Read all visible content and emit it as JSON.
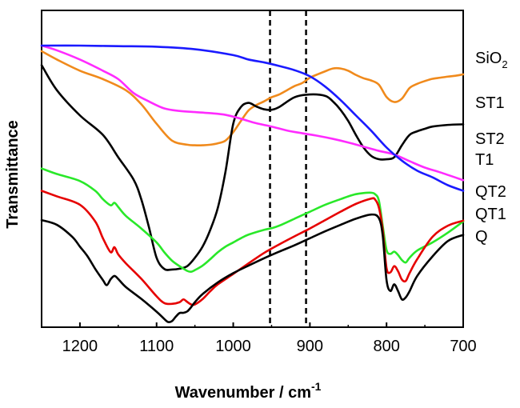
{
  "chart_data": {
    "type": "line",
    "title": "",
    "xlabel": "Wavenumber / cm",
    "xlabel_superscript": "-1",
    "ylabel": "Transmittance",
    "xlim": [
      1250,
      700
    ],
    "ylim": [
      0,
      100
    ],
    "x_ticks": [
      1200,
      1100,
      1000,
      900,
      800,
      700
    ],
    "x_tick_labels": [
      "1200",
      "1100",
      "1000",
      "900",
      "800",
      "700"
    ],
    "y_ticks_shown": false,
    "vertical_reference_lines": [
      952,
      905
    ],
    "series": [
      {
        "name": "SiO2",
        "label": "SiO",
        "label_subscript": "2",
        "color": "#f08a1c",
        "x": [
          1250,
          1230,
          1200,
          1170,
          1140,
          1120,
          1100,
          1080,
          1060,
          1050,
          1040,
          1030,
          1020,
          1010,
          1000,
          990,
          980,
          970,
          960,
          950,
          940,
          930,
          920,
          910,
          900,
          890,
          880,
          870,
          860,
          850,
          840,
          830,
          820,
          810,
          800,
          790,
          780,
          770,
          760,
          750,
          740,
          730,
          720,
          710,
          700
        ],
        "y": [
          98,
          95,
          91,
          88,
          84,
          79,
          72,
          66,
          64.5,
          64.3,
          64.3,
          64.5,
          65,
          66,
          69,
          73,
          76.8,
          78.7,
          80,
          81.5,
          82.5,
          84,
          85.5,
          86.6,
          88.5,
          89.7,
          90.8,
          91.8,
          91.8,
          91,
          89.5,
          88.3,
          87.5,
          86,
          81.6,
          79.8,
          81,
          84.8,
          86.3,
          87.3,
          88.1,
          88.5,
          88.9,
          89.2,
          89.7
        ]
      },
      {
        "name": "ST1",
        "label": "ST1",
        "color": "#000000",
        "x": [
          1250,
          1230,
          1200,
          1170,
          1150,
          1130,
          1120,
          1110,
          1100,
          1090,
          1080,
          1070,
          1060,
          1050,
          1040,
          1030,
          1020,
          1010,
          1000,
          990,
          980,
          970,
          960,
          950,
          940,
          920,
          900,
          880,
          870,
          860,
          850,
          840,
          830,
          820,
          810,
          800,
          790,
          780,
          770,
          760,
          750,
          740,
          720,
          700
        ],
        "y": [
          93,
          84,
          75,
          68,
          60,
          52,
          45,
          35,
          24,
          20,
          19.8,
          20.1,
          21,
          24,
          28,
          34,
          42,
          55,
          72,
          78,
          79.5,
          78.2,
          77.2,
          77,
          78,
          81.5,
          82.5,
          82,
          80,
          77,
          73,
          68,
          63.5,
          60.5,
          59.3,
          59.3,
          60,
          64.3,
          68,
          69.3,
          70.2,
          71,
          71.6,
          71.8
        ]
      },
      {
        "name": "ST2",
        "label": "ST2",
        "color": "#ff2bff",
        "x": [
          1250,
          1230,
          1200,
          1170,
          1150,
          1130,
          1110,
          1090,
          1070,
          1050,
          1030,
          1010,
          990,
          970,
          950,
          930,
          910,
          890,
          870,
          850,
          830,
          810,
          790,
          770,
          750,
          730,
          700
        ],
        "y": [
          100,
          98.3,
          95,
          91,
          88,
          83,
          80,
          77.5,
          76.6,
          76.2,
          75.8,
          75.2,
          73.8,
          72.2,
          71,
          69.6,
          68.6,
          67.7,
          66.6,
          65.3,
          63.8,
          62.3,
          61,
          58.6,
          56.3,
          54.6,
          51.8
        ]
      },
      {
        "name": "T1",
        "label": "T1",
        "color": "#1a1aff",
        "x": [
          1250,
          1200,
          1150,
          1100,
          1050,
          1000,
          980,
          960,
          940,
          920,
          900,
          880,
          860,
          840,
          820,
          800,
          780,
          760,
          740,
          720,
          700
        ],
        "y": [
          100,
          100,
          99.8,
          99.6,
          98.7,
          96.6,
          95,
          94,
          92.7,
          91.2,
          89,
          85.3,
          80.5,
          75,
          69.5,
          63.5,
          58.8,
          55.2,
          52.8,
          50,
          48
        ]
      },
      {
        "name": "QT2",
        "label": "QT2",
        "color": "#29e829",
        "x": [
          1250,
          1230,
          1200,
          1180,
          1170,
          1160,
          1155,
          1150,
          1140,
          1120,
          1100,
          1090,
          1080,
          1070,
          1060,
          1055,
          1050,
          1040,
          1030,
          1020,
          1010,
          1000,
          990,
          980,
          960,
          950,
          940,
          920,
          900,
          880,
          860,
          850,
          840,
          830,
          820,
          815,
          810,
          805,
          800,
          795,
          790,
          785,
          780,
          775,
          770,
          760,
          740,
          720,
          700
        ],
        "y": [
          56,
          54,
          51.5,
          48,
          45,
          42.8,
          43.7,
          42.2,
          39,
          34.5,
          29.5,
          26,
          23,
          21,
          19.3,
          19,
          19.6,
          21.2,
          23.5,
          26,
          28,
          29.5,
          31,
          32.3,
          34,
          34.6,
          35.5,
          38,
          40.5,
          43,
          45,
          46,
          46.8,
          47.2,
          47.3,
          46.8,
          44.5,
          35.5,
          26.8,
          25.4,
          26.2,
          25,
          23.2,
          22.3,
          24,
          26.6,
          29.5,
          33,
          37
        ]
      },
      {
        "name": "QT1",
        "label": "QT1",
        "color": "#e60000",
        "x": [
          1250,
          1230,
          1200,
          1180,
          1170,
          1160,
          1155,
          1150,
          1140,
          1120,
          1100,
          1090,
          1080,
          1070,
          1065,
          1060,
          1055,
          1050,
          1040,
          1030,
          1020,
          1000,
          980,
          960,
          940,
          920,
          900,
          880,
          860,
          840,
          820,
          815,
          810,
          805,
          800,
          795,
          790,
          785,
          780,
          775,
          770,
          760,
          740,
          720,
          700
        ],
        "y": [
          48,
          46,
          43,
          37,
          31,
          26,
          27.8,
          25.2,
          22,
          16.5,
          10.2,
          7.8,
          7.5,
          8.1,
          9.1,
          8.2,
          7.3,
          7.3,
          9.2,
          12,
          14.5,
          18.2,
          22,
          25.7,
          28.8,
          31.7,
          34.5,
          37.5,
          40.5,
          43.3,
          45.2,
          44.9,
          42,
          34,
          20.3,
          18.8,
          21,
          19.2,
          16.2,
          15.7,
          18.5,
          23.5,
          31.5,
          35.5,
          37.3
        ]
      },
      {
        "name": "Q",
        "label": "Q",
        "color": "#000000",
        "x": [
          1250,
          1230,
          1210,
          1200,
          1190,
          1180,
          1170,
          1165,
          1160,
          1155,
          1150,
          1140,
          1120,
          1100,
          1090,
          1085,
          1080,
          1075,
          1070,
          1065,
          1060,
          1055,
          1050,
          1040,
          1020,
          1000,
          980,
          960,
          940,
          920,
          900,
          880,
          860,
          840,
          820,
          810,
          805,
          800,
          795,
          790,
          785,
          780,
          775,
          770,
          760,
          740,
          720,
          700
        ],
        "y": [
          37.5,
          35.8,
          31.5,
          28,
          24.5,
          20,
          16,
          14.2,
          16.3,
          17.5,
          16.4,
          13.5,
          9.3,
          4.7,
          2.1,
          1,
          1.3,
          2.9,
          4.2,
          4.3,
          4.8,
          6.3,
          8.1,
          11,
          15.2,
          18.5,
          21.2,
          23.8,
          26.2,
          28.5,
          31,
          33.5,
          35.8,
          38,
          39.5,
          38.2,
          32,
          16,
          12.1,
          14.5,
          12.1,
          9.1,
          9.8,
          12,
          17.5,
          24.5,
          30,
          32.2
        ]
      }
    ]
  }
}
